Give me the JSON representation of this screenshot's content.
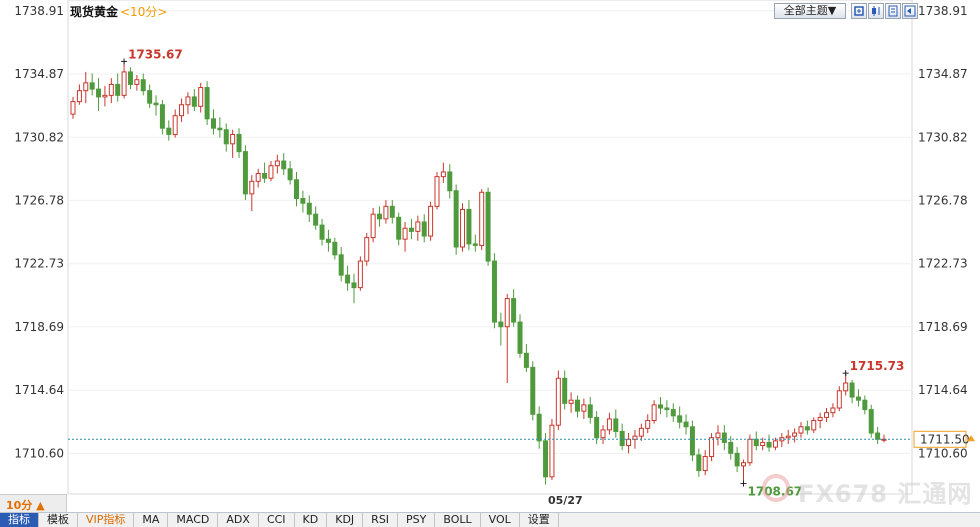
{
  "header": {
    "instrument": "现货黄金",
    "period": "<10分>",
    "subject_button": "全部主题▼",
    "icon_buttons": [
      "zoom-in-icon",
      "candle-icon",
      "list-icon",
      "back-icon"
    ]
  },
  "chart_data": {
    "type": "candlestick",
    "ylim": [
      1708.0,
      1739.6
    ],
    "y_ticks": [
      "1738.91",
      "1734.87",
      "1730.82",
      "1726.78",
      "1722.73",
      "1718.69",
      "1714.64",
      "1710.60"
    ],
    "x_tick_label": "05/27",
    "last_price": 1711.5,
    "last_price_label": "1711.50",
    "annotations": [
      {
        "label": "1735.67",
        "value": 1735.67,
        "kind": "high"
      },
      {
        "label": "1715.73",
        "value": 1715.73,
        "kind": "high"
      },
      {
        "label": "1708.67",
        "value": 1708.67,
        "kind": "low"
      }
    ],
    "candles": [
      [
        1732.3,
        1733.4,
        1732.0,
        1733.1
      ],
      [
        1733.1,
        1734.2,
        1732.9,
        1733.8
      ],
      [
        1733.8,
        1735.0,
        1733.0,
        1734.3
      ],
      [
        1734.3,
        1734.9,
        1733.5,
        1733.9
      ],
      [
        1733.9,
        1734.6,
        1732.5,
        1733.4
      ],
      [
        1733.4,
        1734.1,
        1732.8,
        1733.5
      ],
      [
        1733.5,
        1734.6,
        1733.0,
        1734.2
      ],
      [
        1734.2,
        1734.9,
        1733.1,
        1733.5
      ],
      [
        1733.5,
        1735.67,
        1733.3,
        1735.0
      ],
      [
        1735.0,
        1735.3,
        1733.9,
        1734.2
      ],
      [
        1734.2,
        1734.8,
        1733.8,
        1734.5
      ],
      [
        1734.5,
        1734.9,
        1733.5,
        1733.8
      ],
      [
        1733.8,
        1734.2,
        1732.7,
        1733.0
      ],
      [
        1733.0,
        1733.5,
        1732.2,
        1732.9
      ],
      [
        1732.9,
        1733.2,
        1731.0,
        1731.4
      ],
      [
        1731.4,
        1731.9,
        1730.6,
        1731.0
      ],
      [
        1731.0,
        1732.6,
        1730.8,
        1732.2
      ],
      [
        1732.2,
        1733.3,
        1731.8,
        1732.9
      ],
      [
        1732.9,
        1733.7,
        1732.3,
        1733.4
      ],
      [
        1733.4,
        1733.9,
        1732.5,
        1732.8
      ],
      [
        1732.8,
        1734.3,
        1732.4,
        1734.0
      ],
      [
        1734.0,
        1734.4,
        1731.6,
        1732.0
      ],
      [
        1732.0,
        1732.6,
        1731.0,
        1731.4
      ],
      [
        1731.4,
        1732.1,
        1730.8,
        1731.3
      ],
      [
        1731.3,
        1731.7,
        1729.9,
        1730.4
      ],
      [
        1730.4,
        1731.3,
        1729.5,
        1731.0
      ],
      [
        1731.0,
        1731.4,
        1729.5,
        1729.9
      ],
      [
        1729.9,
        1730.3,
        1726.8,
        1727.2
      ],
      [
        1727.2,
        1728.4,
        1726.1,
        1728.0
      ],
      [
        1728.0,
        1728.8,
        1727.6,
        1728.5
      ],
      [
        1728.5,
        1729.2,
        1727.9,
        1728.2
      ],
      [
        1728.2,
        1729.3,
        1728.0,
        1729.0
      ],
      [
        1729.0,
        1729.7,
        1728.5,
        1729.3
      ],
      [
        1729.3,
        1729.8,
        1728.4,
        1728.8
      ],
      [
        1728.8,
        1729.3,
        1727.8,
        1728.1
      ],
      [
        1728.1,
        1728.6,
        1726.4,
        1726.9
      ],
      [
        1726.9,
        1727.4,
        1726.0,
        1726.6
      ],
      [
        1726.6,
        1727.1,
        1725.4,
        1725.9
      ],
      [
        1725.9,
        1726.4,
        1724.9,
        1725.2
      ],
      [
        1725.2,
        1725.6,
        1723.9,
        1724.3
      ],
      [
        1724.3,
        1724.9,
        1723.5,
        1724.1
      ],
      [
        1724.1,
        1724.4,
        1723.0,
        1723.3
      ],
      [
        1723.3,
        1723.8,
        1721.6,
        1722.0
      ],
      [
        1722.0,
        1722.6,
        1721.0,
        1721.5
      ],
      [
        1721.5,
        1722.1,
        1720.2,
        1721.2
      ],
      [
        1721.2,
        1723.2,
        1721.0,
        1722.9
      ],
      [
        1722.9,
        1724.7,
        1722.6,
        1724.4
      ],
      [
        1724.4,
        1726.3,
        1724.1,
        1725.9
      ],
      [
        1725.9,
        1726.4,
        1725.1,
        1725.6
      ],
      [
        1725.6,
        1726.8,
        1725.3,
        1726.4
      ],
      [
        1726.4,
        1726.8,
        1725.3,
        1725.7
      ],
      [
        1725.7,
        1726.0,
        1723.9,
        1724.3
      ],
      [
        1724.3,
        1725.4,
        1723.5,
        1725.0
      ],
      [
        1725.0,
        1725.6,
        1724.3,
        1724.8
      ],
      [
        1724.8,
        1725.8,
        1724.2,
        1725.4
      ],
      [
        1725.4,
        1725.9,
        1724.1,
        1724.5
      ],
      [
        1724.5,
        1726.7,
        1724.2,
        1726.4
      ],
      [
        1726.4,
        1728.6,
        1726.2,
        1728.3
      ],
      [
        1728.3,
        1729.2,
        1727.9,
        1728.6
      ],
      [
        1728.6,
        1729.1,
        1726.9,
        1727.4
      ],
      [
        1727.4,
        1727.8,
        1723.3,
        1723.8
      ],
      [
        1723.8,
        1726.6,
        1723.5,
        1726.2
      ],
      [
        1726.2,
        1726.8,
        1723.6,
        1724.0
      ],
      [
        1724.0,
        1724.6,
        1723.5,
        1723.9
      ],
      [
        1723.9,
        1727.5,
        1723.6,
        1727.3
      ],
      [
        1727.3,
        1727.6,
        1722.6,
        1722.9
      ],
      [
        1722.9,
        1723.4,
        1718.6,
        1719.0
      ],
      [
        1719.0,
        1719.6,
        1717.5,
        1718.7
      ],
      [
        1718.7,
        1720.8,
        1715.1,
        1720.5
      ],
      [
        1720.5,
        1721.1,
        1718.7,
        1719.0
      ],
      [
        1719.0,
        1719.5,
        1716.7,
        1717.0
      ],
      [
        1717.0,
        1717.6,
        1715.8,
        1716.1
      ],
      [
        1716.1,
        1716.5,
        1712.7,
        1713.1
      ],
      [
        1713.1,
        1713.6,
        1710.9,
        1711.4
      ],
      [
        1711.4,
        1711.9,
        1708.6,
        1709.1
      ],
      [
        1709.1,
        1712.8,
        1708.9,
        1712.4
      ],
      [
        1712.4,
        1715.9,
        1712.1,
        1715.4
      ],
      [
        1715.4,
        1715.9,
        1713.4,
        1713.8
      ],
      [
        1713.8,
        1714.5,
        1713.2,
        1714.0
      ],
      [
        1714.0,
        1714.3,
        1712.9,
        1713.3
      ],
      [
        1713.3,
        1714.1,
        1712.8,
        1713.7
      ],
      [
        1713.7,
        1714.2,
        1712.5,
        1712.9
      ],
      [
        1712.9,
        1713.3,
        1711.2,
        1711.6
      ],
      [
        1711.6,
        1712.4,
        1711.2,
        1712.1
      ],
      [
        1712.1,
        1713.2,
        1711.8,
        1712.8
      ],
      [
        1712.8,
        1713.4,
        1711.6,
        1712.0
      ],
      [
        1712.0,
        1712.5,
        1710.8,
        1711.1
      ],
      [
        1711.1,
        1711.9,
        1710.6,
        1711.5
      ],
      [
        1711.5,
        1712.1,
        1710.9,
        1711.7
      ],
      [
        1711.7,
        1712.5,
        1711.4,
        1712.2
      ],
      [
        1712.2,
        1713.1,
        1711.9,
        1712.7
      ],
      [
        1712.7,
        1714.0,
        1712.5,
        1713.7
      ],
      [
        1713.7,
        1714.2,
        1713.1,
        1713.5
      ],
      [
        1713.5,
        1714.0,
        1712.9,
        1713.4
      ],
      [
        1713.4,
        1713.8,
        1712.6,
        1713.0
      ],
      [
        1713.0,
        1713.6,
        1712.2,
        1712.6
      ],
      [
        1712.6,
        1713.1,
        1711.8,
        1712.3
      ],
      [
        1712.3,
        1712.7,
        1710.1,
        1710.5
      ],
      [
        1710.5,
        1710.9,
        1709.1,
        1709.5
      ],
      [
        1709.5,
        1710.8,
        1709.2,
        1710.4
      ],
      [
        1710.4,
        1711.9,
        1710.1,
        1711.6
      ],
      [
        1711.6,
        1712.4,
        1711.1,
        1711.9
      ],
      [
        1711.9,
        1712.4,
        1710.8,
        1711.3
      ],
      [
        1711.3,
        1711.7,
        1710.2,
        1710.6
      ],
      [
        1710.6,
        1711.0,
        1709.4,
        1709.8
      ],
      [
        1709.8,
        1710.2,
        1708.67,
        1710.0
      ],
      [
        1710.0,
        1711.8,
        1709.8,
        1711.5
      ],
      [
        1711.5,
        1712.0,
        1710.8,
        1711.1
      ],
      [
        1711.1,
        1711.6,
        1710.8,
        1711.3
      ],
      [
        1711.3,
        1711.8,
        1710.7,
        1711.0
      ],
      [
        1711.0,
        1711.6,
        1710.8,
        1711.4
      ],
      [
        1711.4,
        1711.9,
        1711.0,
        1711.6
      ],
      [
        1711.6,
        1712.1,
        1711.2,
        1711.7
      ],
      [
        1711.7,
        1712.2,
        1711.3,
        1711.9
      ],
      [
        1711.9,
        1712.6,
        1711.6,
        1712.3
      ],
      [
        1712.3,
        1712.7,
        1711.8,
        1712.1
      ],
      [
        1712.1,
        1712.9,
        1711.9,
        1712.7
      ],
      [
        1712.7,
        1713.2,
        1712.2,
        1712.9
      ],
      [
        1712.9,
        1713.5,
        1712.6,
        1713.2
      ],
      [
        1713.2,
        1713.8,
        1712.9,
        1713.5
      ],
      [
        1713.5,
        1714.9,
        1713.3,
        1714.6
      ],
      [
        1714.6,
        1715.73,
        1714.3,
        1715.1
      ],
      [
        1715.1,
        1715.3,
        1713.8,
        1714.2
      ],
      [
        1714.2,
        1714.7,
        1713.6,
        1714.0
      ],
      [
        1714.0,
        1714.3,
        1713.1,
        1713.4
      ],
      [
        1713.4,
        1713.7,
        1711.6,
        1711.9
      ],
      [
        1711.9,
        1712.3,
        1711.2,
        1711.5
      ],
      [
        1711.5,
        1711.8,
        1711.3,
        1711.5
      ]
    ]
  },
  "watermark": {
    "text": "FX678 汇通网"
  },
  "footer": {
    "period_button": "10分 ▲",
    "tabs": [
      "指标",
      "模板",
      "VIP指标",
      "MA",
      "MACD",
      "ADX",
      "CCI",
      "KD",
      "KDJ",
      "RSI",
      "PSY",
      "BOLL",
      "VOL",
      "设置"
    ]
  }
}
